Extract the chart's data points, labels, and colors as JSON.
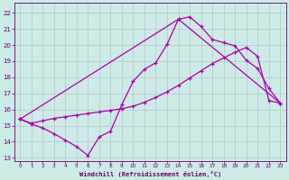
{
  "xlabel": "Windchill (Refroidissement éolien,°C)",
  "bg_color": "#ceeae7",
  "grid_color": "#b0c8c8",
  "line_color": "#aa00aa",
  "xlim": [
    -0.5,
    23.5
  ],
  "ylim": [
    12.8,
    22.6
  ],
  "xticks": [
    0,
    1,
    2,
    3,
    4,
    5,
    6,
    7,
    8,
    9,
    10,
    11,
    12,
    13,
    14,
    15,
    16,
    17,
    18,
    19,
    20,
    21,
    22,
    23
  ],
  "yticks": [
    13,
    14,
    15,
    16,
    17,
    18,
    19,
    20,
    21,
    22
  ],
  "series1_x": [
    0,
    1,
    2,
    3,
    4,
    5,
    6,
    7,
    8,
    9,
    10,
    11,
    12,
    13,
    14,
    15,
    16,
    17,
    18,
    19,
    20,
    21,
    22,
    23
  ],
  "series1_y": [
    15.4,
    15.1,
    14.85,
    14.5,
    14.1,
    13.7,
    13.15,
    14.3,
    14.65,
    16.3,
    17.75,
    18.5,
    18.9,
    20.05,
    21.6,
    21.75,
    21.15,
    20.35,
    20.15,
    19.95,
    19.05,
    18.55,
    17.3,
    16.4
  ],
  "series2_x": [
    0,
    1,
    2,
    3,
    4,
    5,
    6,
    7,
    8,
    9,
    10,
    11,
    12,
    13,
    14,
    15,
    16,
    17,
    18,
    19,
    20,
    21,
    22,
    23
  ],
  "series2_y": [
    15.4,
    15.15,
    15.3,
    15.45,
    15.55,
    15.65,
    15.75,
    15.85,
    15.95,
    16.05,
    16.2,
    16.45,
    16.75,
    17.1,
    17.5,
    17.95,
    18.4,
    18.85,
    19.2,
    19.55,
    19.85,
    19.3,
    16.55,
    16.4
  ],
  "series3_x": [
    0,
    14,
    23
  ],
  "series3_y": [
    15.4,
    21.6,
    16.4
  ]
}
